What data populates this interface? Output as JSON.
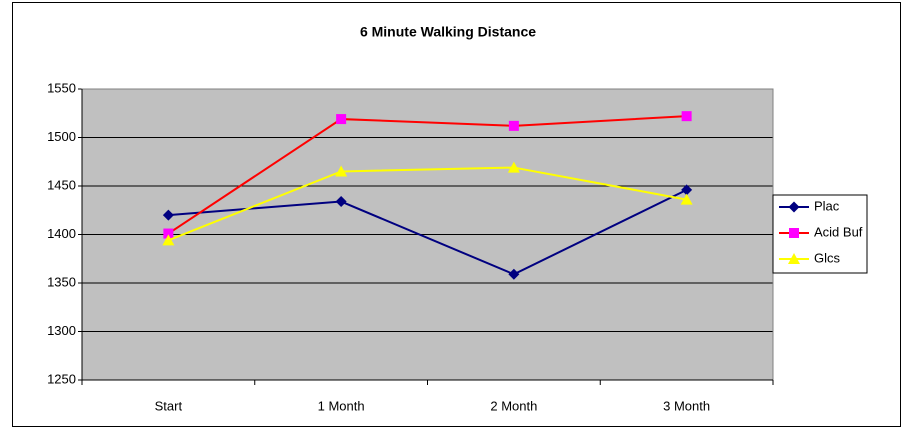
{
  "chart_data": {
    "type": "line",
    "title": "6 Minute Walking Distance",
    "categories": [
      "Start",
      "1 Month",
      "2 Month",
      "3 Month"
    ],
    "series": [
      {
        "name": "Plac",
        "color": "#000080",
        "marker": "diamond",
        "marker_color": "#000080",
        "values": [
          1420,
          1434,
          1359,
          1446
        ]
      },
      {
        "name": "Acid Buf",
        "color": "#ff0000",
        "marker": "square",
        "marker_color": "#ff00ff",
        "values": [
          1401,
          1519,
          1512,
          1522
        ]
      },
      {
        "name": "Glcs",
        "color": "#ffff00",
        "marker": "triangle",
        "marker_color": "#ffff00",
        "values": [
          1394,
          1465,
          1469,
          1436
        ]
      }
    ],
    "ylim": [
      1250,
      1550
    ],
    "yticks": [
      1250,
      1300,
      1350,
      1400,
      1450,
      1500,
      1550
    ],
    "grid": true,
    "plot_background": "#c0c0c0",
    "legend": "right"
  }
}
